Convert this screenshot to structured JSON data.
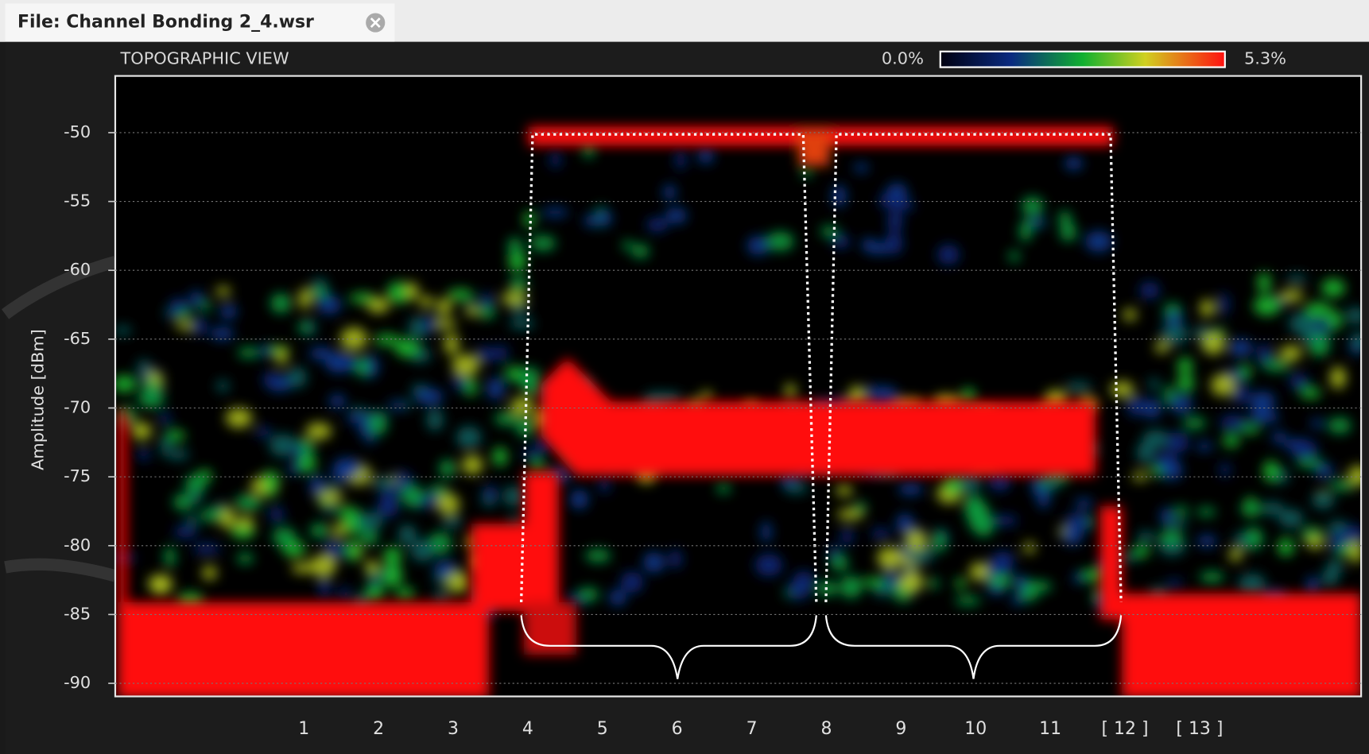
{
  "tab": {
    "title": "File: Channel Bonding 2_4.wsr"
  },
  "chart_data": {
    "type": "heatmap",
    "title": "TOPOGRAPHIC VIEW",
    "y_label": "Amplitude [dBm]",
    "ylim": [
      -90.95,
      -45.88
    ],
    "yticks": [
      -50,
      -55,
      -60,
      -65,
      -70,
      -75,
      -80,
      -85,
      -90
    ],
    "grid": true,
    "categories": [
      "1",
      "2",
      "3",
      "4",
      "5",
      "6",
      "7",
      "8",
      "9",
      "10",
      "11",
      "[ 12 ]",
      "[ 13 ]"
    ],
    "colorbar": {
      "range": [
        {
          "value": 0,
          "label": "0.0%"
        },
        {
          "value": 5.3,
          "label": "5.3%"
        }
      ]
    }
  }
}
